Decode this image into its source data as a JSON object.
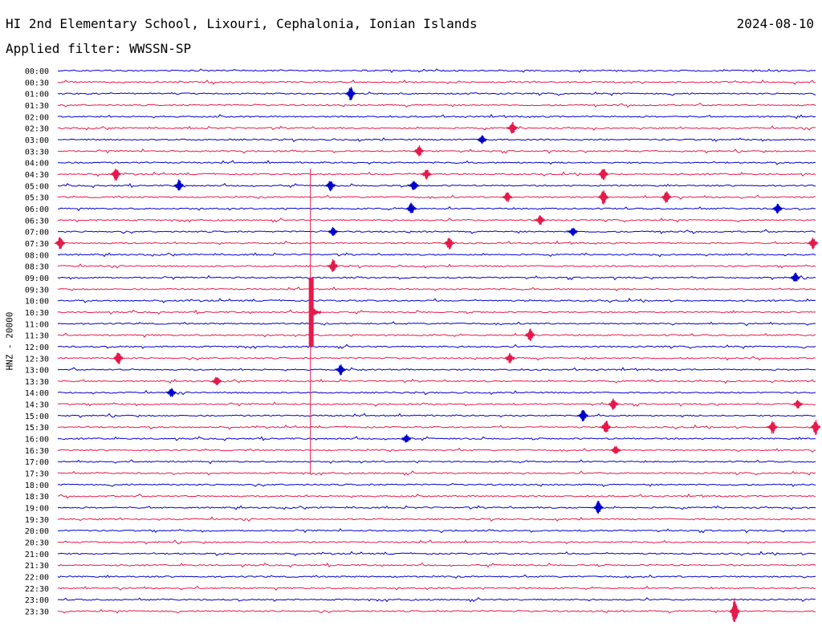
{
  "header": {
    "title": "HI 2nd Elementary School, Lixouri, Cephalonia, Ionian Islands",
    "date": "2024-08-10",
    "filter": "Applied filter: WWSSN-SP"
  },
  "colors": {
    "even_trace": "#0000cc",
    "odd_trace": "#e6194b",
    "background": "#ffffff"
  },
  "chart_data": {
    "type": "helicorder",
    "ylabel": "HNZ - 20000",
    "row_labels": [
      "00:00",
      "00:30",
      "01:00",
      "01:30",
      "02:00",
      "02:30",
      "03:00",
      "03:30",
      "04:00",
      "04:30",
      "05:00",
      "05:30",
      "06:00",
      "06:30",
      "07:00",
      "07:30",
      "08:00",
      "08:30",
      "09:00",
      "09:30",
      "10:00",
      "10:30",
      "11:00",
      "11:30",
      "12:00",
      "12:30",
      "13:00",
      "13:30",
      "14:00",
      "14:30",
      "15:00",
      "15:30",
      "16:00",
      "16:30",
      "17:00",
      "17:30",
      "18:00",
      "18:30",
      "19:00",
      "19:30",
      "20:00",
      "20:30",
      "21:00",
      "21:30",
      "22:00",
      "22:30",
      "23:00",
      "23:30"
    ],
    "minutes_per_row": 30,
    "trace_colors": [
      "#0000cc",
      "#e6194b"
    ],
    "events": [
      {
        "row": 2,
        "minute": 11.6,
        "amp": 9
      },
      {
        "row": 5,
        "minute": 18.0,
        "amp": 9
      },
      {
        "row": 6,
        "minute": 16.8,
        "amp": 6
      },
      {
        "row": 7,
        "minute": 14.3,
        "amp": 8
      },
      {
        "row": 9,
        "minute": 2.3,
        "amp": 9
      },
      {
        "row": 9,
        "minute": 14.6,
        "amp": 7
      },
      {
        "row": 9,
        "minute": 21.6,
        "amp": 9
      },
      {
        "row": 10,
        "minute": 4.8,
        "amp": 8
      },
      {
        "row": 10,
        "minute": 10.8,
        "amp": 8
      },
      {
        "row": 10,
        "minute": 14.1,
        "amp": 8
      },
      {
        "row": 11,
        "minute": 17.8,
        "amp": 7
      },
      {
        "row": 11,
        "minute": 21.6,
        "amp": 10
      },
      {
        "row": 11,
        "minute": 24.1,
        "amp": 8
      },
      {
        "row": 12,
        "minute": 14.0,
        "amp": 8
      },
      {
        "row": 12,
        "minute": 28.5,
        "amp": 7
      },
      {
        "row": 13,
        "minute": 19.1,
        "amp": 7
      },
      {
        "row": 14,
        "minute": 10.9,
        "amp": 6
      },
      {
        "row": 14,
        "minute": 20.4,
        "amp": 6
      },
      {
        "row": 15,
        "minute": 0.1,
        "amp": 9
      },
      {
        "row": 15,
        "minute": 15.5,
        "amp": 9
      },
      {
        "row": 15,
        "minute": 29.9,
        "amp": 8
      },
      {
        "row": 17,
        "minute": 10.9,
        "amp": 9
      },
      {
        "row": 18,
        "minute": 29.2,
        "amp": 7
      },
      {
        "row": 21,
        "minute": 10.0,
        "amp": 200
      },
      {
        "row": 23,
        "minute": 18.7,
        "amp": 9
      },
      {
        "row": 25,
        "minute": 2.4,
        "amp": 9
      },
      {
        "row": 25,
        "minute": 17.9,
        "amp": 7
      },
      {
        "row": 26,
        "minute": 11.2,
        "amp": 7
      },
      {
        "row": 27,
        "minute": 6.3,
        "amp": 7
      },
      {
        "row": 28,
        "minute": 4.5,
        "amp": 6
      },
      {
        "row": 29,
        "minute": 22.0,
        "amp": 8
      },
      {
        "row": 29,
        "minute": 29.3,
        "amp": 6
      },
      {
        "row": 30,
        "minute": 20.8,
        "amp": 9
      },
      {
        "row": 31,
        "minute": 21.7,
        "amp": 10
      },
      {
        "row": 31,
        "minute": 28.3,
        "amp": 9
      },
      {
        "row": 31,
        "minute": 30.0,
        "amp": 10
      },
      {
        "row": 32,
        "minute": 13.8,
        "amp": 6
      },
      {
        "row": 33,
        "minute": 22.1,
        "amp": 6
      },
      {
        "row": 38,
        "minute": 21.4,
        "amp": 9
      },
      {
        "row": 47,
        "minute": 26.8,
        "amp": 18
      }
    ]
  }
}
